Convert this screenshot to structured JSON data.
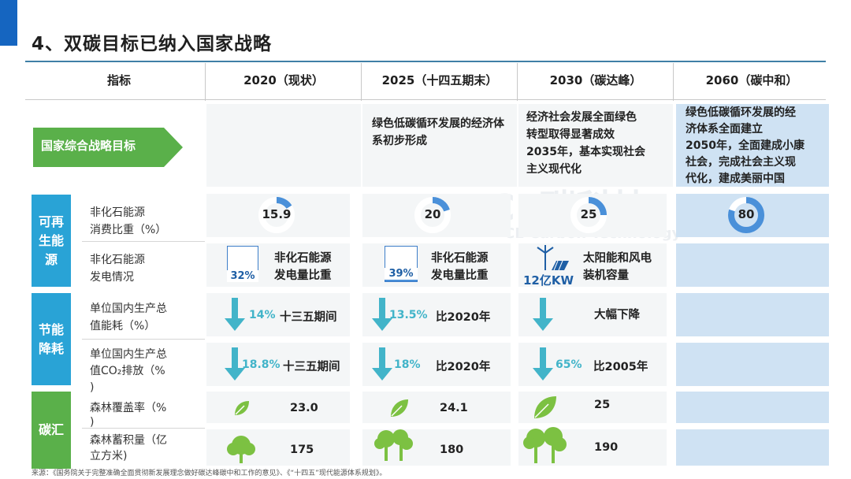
{
  "title": "4、双碳目标已纳入国家战略",
  "headers": {
    "indicator": "指标",
    "c2020": "2020（现状）",
    "c2025": "2025（十四五期末）",
    "c2030": "2030（碳达峰）",
    "c2060": "2060（碳中和）"
  },
  "strategy": {
    "label": "国家综合战略目标",
    "g2025": "绿色低碳循环发展的经济体系初步形成",
    "g2030_lines": [
      "经济社会发展全面绿色",
      "转型取得显著成效",
      "2035年，基本实现社会",
      "主义现代化"
    ],
    "g2060_lines": [
      "绿色低碳循环发展的经",
      "济体系全面建立",
      "2050年，全面建成小康",
      "社会，完成社会主义现",
      "代化，建成美丽中国"
    ]
  },
  "categories": {
    "renewable_lines": [
      "可再",
      "生能",
      "源"
    ],
    "energy_lines": [
      "节能",
      "降耗"
    ],
    "sink": "碳汇"
  },
  "rows": {
    "r1_lines": [
      "非化石能源",
      "消费比重（%）"
    ],
    "r2_lines": [
      "非化石能源",
      "发电情况"
    ],
    "r3_lines": [
      "单位国内生产总",
      "值能耗（%）"
    ],
    "r4_lines": [
      "单位国内生产总",
      "值CO₂排放（%",
      ")"
    ],
    "r5_lines": [
      "森林覆盖率（%",
      ")"
    ],
    "r6_lines": [
      "森林蓄积量（亿",
      "立方米)"
    ]
  },
  "nonfossil_share": {
    "v2020": "15.9",
    "v2025": "20",
    "v2030": "25",
    "v2060": "80"
  },
  "nonfossil_share_values": {
    "v2020": 15.9,
    "v2025": 20,
    "v2030": 25,
    "v2060": 80
  },
  "power": {
    "p2020": "32%",
    "p2025": "39%",
    "p2020_value": 32,
    "p2025_value": 39,
    "desc_lines": [
      "非化石能源",
      "发电量比重"
    ],
    "capacity": "12亿KW",
    "capacity_lines": [
      "太阳能和风电",
      "装机容量"
    ]
  },
  "energy_intensity": {
    "d2020": "14%",
    "t2020": "十三五期间",
    "d2025": "13.5%",
    "t2025": "比2020年",
    "t2030": "大幅下降"
  },
  "co2_intensity": {
    "d2020": "18.8%",
    "t2020": "十三五期间",
    "d2025": "18%",
    "t2025": "比2020年",
    "d2030": "65%",
    "t2030": "比2005年"
  },
  "forest": {
    "cover2020": "23.0",
    "cover2025": "24.1",
    "cover2030": "25",
    "stock2020": "175",
    "stock2025": "180",
    "stock2030": "190"
  },
  "source": "来源：《国务院关于完整准确全面贯彻新发展理念做好碳达峰碳中和工作的意见》、《“十四五”现代能源体系规划》。",
  "watermark": {
    "main": "CE碳科技",
    "sub": "CE Carbon Technology"
  },
  "colors": {
    "accent": "#1565c0",
    "teal": "#29a3d6",
    "green": "#5ab04a",
    "ring": "#4a90d9",
    "arrow": "#42b4c9"
  }
}
